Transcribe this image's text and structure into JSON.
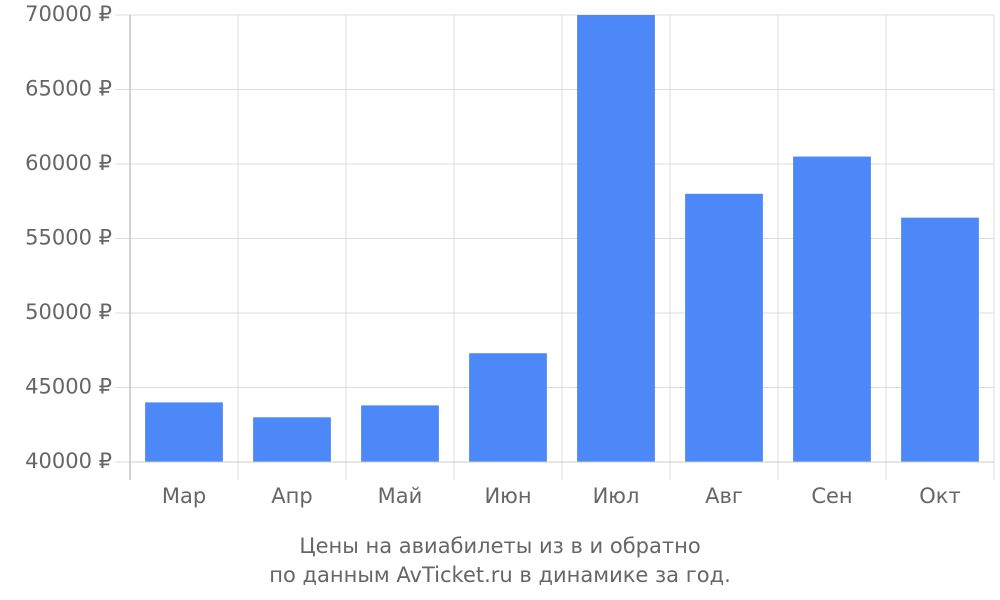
{
  "chart_data": {
    "type": "bar",
    "title_lines": [
      "Цены на авиабилеты из  в  и обратно",
      "по данным AvTicket.ru в динамике за год."
    ],
    "categories": [
      "Мар",
      "Апр",
      "Май",
      "Июн",
      "Июл",
      "Авг",
      "Сен",
      "Окт"
    ],
    "values": [
      44000,
      43000,
      43800,
      47300,
      70000,
      58000,
      60500,
      56400
    ],
    "color": "#4d88f9",
    "ylim": [
      40000,
      70000
    ],
    "yticks": [
      {
        "value": 40000,
        "label": "40000 ₽"
      },
      {
        "value": 45000,
        "label": "45000 ₽"
      },
      {
        "value": 50000,
        "label": "50000 ₽"
      },
      {
        "value": 55000,
        "label": "55000 ₽"
      },
      {
        "value": 60000,
        "label": "60000 ₽"
      },
      {
        "value": 65000,
        "label": "65000 ₽"
      },
      {
        "value": 70000,
        "label": "70000 ₽"
      }
    ],
    "grid": true
  }
}
